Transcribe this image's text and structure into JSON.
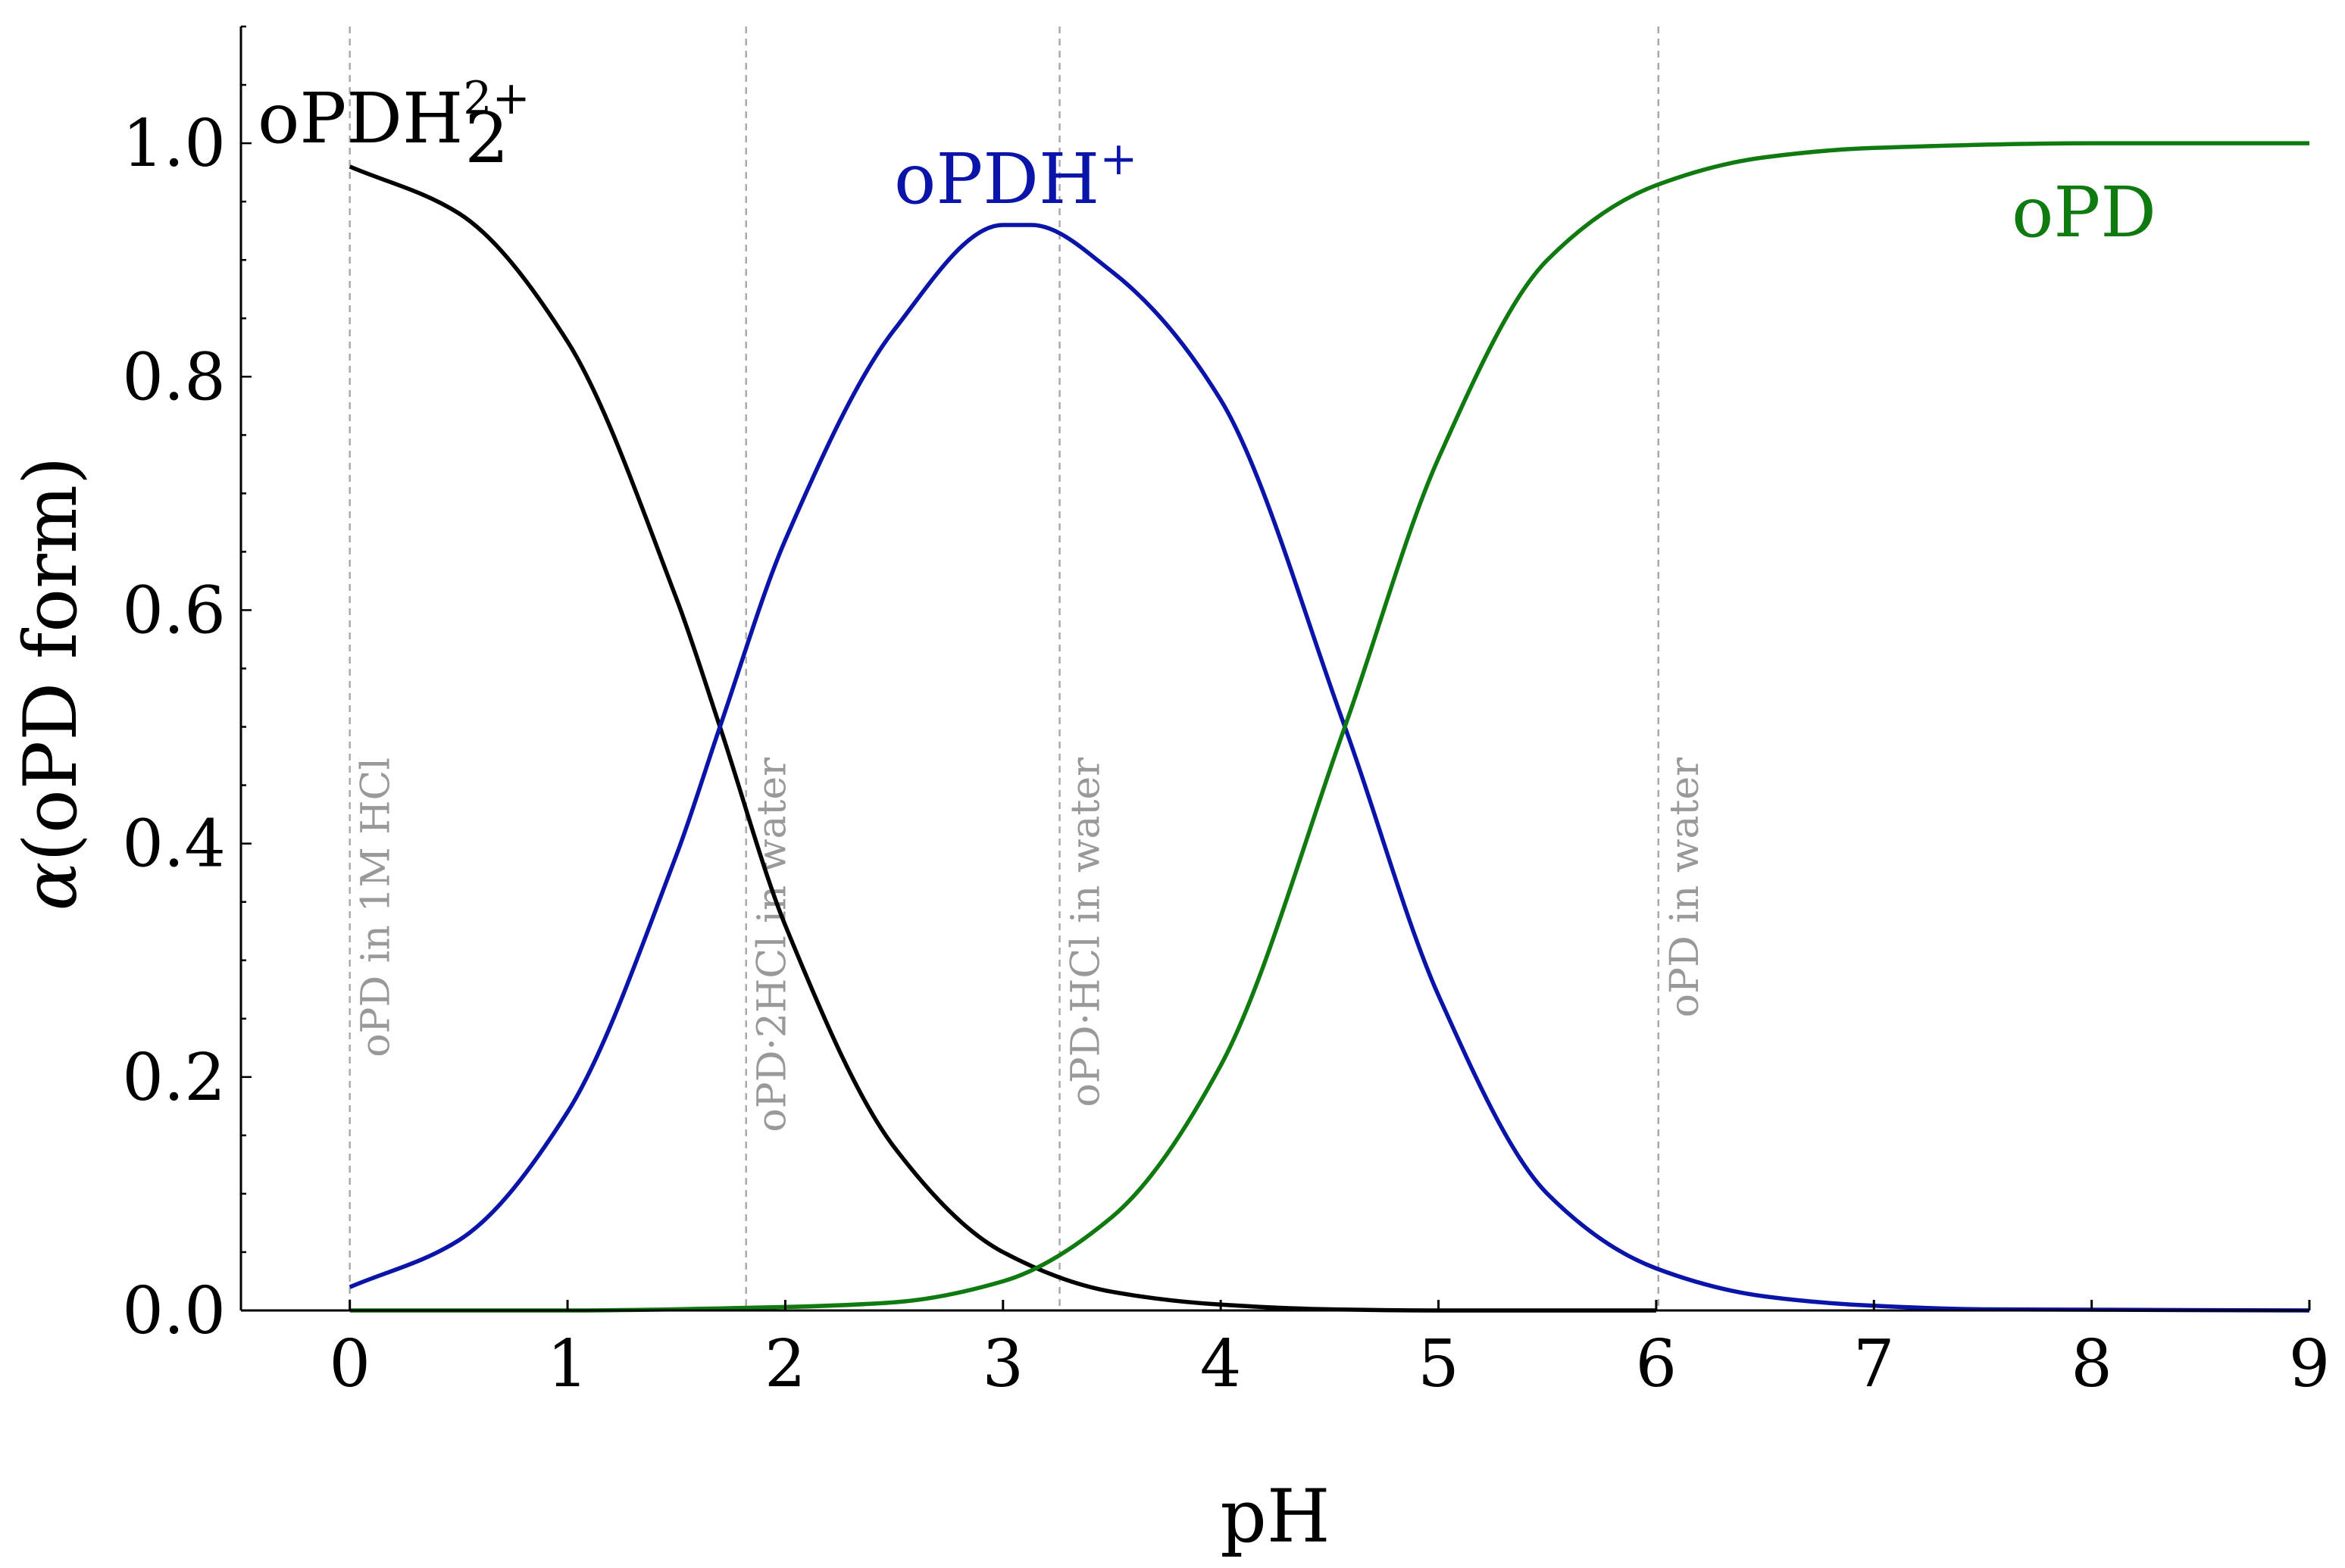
{
  "chart_data": {
    "type": "line",
    "title": "",
    "xlabel": "pH",
    "ylabel_prefix": "α",
    "ylabel": "(oPD form)",
    "xlim": [
      -0.5,
      9
    ],
    "ylim": [
      0,
      1.1
    ],
    "xticks": [
      0,
      1,
      2,
      3,
      4,
      5,
      6,
      7,
      8,
      9
    ],
    "yticks": [
      0.0,
      0.2,
      0.4,
      0.6,
      0.8,
      1.0
    ],
    "ytick_labels": [
      "0.0",
      "0.2",
      "0.4",
      "0.6",
      "0.8",
      "1.0"
    ],
    "grid": false,
    "pKa": [
      1.7,
      4.57
    ],
    "series": [
      {
        "name": "oPDH2 2+",
        "label_base": "oPDH",
        "label_sub": "2",
        "label_sup": "2+",
        "color": "#000000",
        "x": [
          0,
          0.5,
          1.0,
          1.5,
          1.7,
          2.0,
          2.5,
          3.0,
          3.5,
          4.0,
          4.5,
          5.0,
          6.0
        ],
        "values": [
          0.98,
          0.94,
          0.83,
          0.61,
          0.5,
          0.33,
          0.14,
          0.05,
          0.016,
          0.005,
          0.001,
          0.0,
          0.0
        ]
      },
      {
        "name": "oPDH +",
        "label_base": "oPDH",
        "label_sup": "+",
        "color": "#0a14a8",
        "x": [
          0,
          0.5,
          1.0,
          1.5,
          1.7,
          2.0,
          2.5,
          3.0,
          3.13,
          3.5,
          4.0,
          4.57,
          5.0,
          5.5,
          6.0,
          6.5,
          7.0,
          7.5,
          9.0
        ],
        "values": [
          0.02,
          0.06,
          0.17,
          0.39,
          0.5,
          0.66,
          0.84,
          0.93,
          0.93,
          0.89,
          0.78,
          0.5,
          0.27,
          0.1,
          0.036,
          0.012,
          0.004,
          0.001,
          0.0
        ]
      },
      {
        "name": "oPD",
        "label_base": "oPD",
        "color": "#0f7a0f",
        "x": [
          0,
          1.0,
          2.0,
          2.5,
          3.0,
          3.5,
          4.0,
          4.57,
          5.0,
          5.5,
          6.0,
          6.5,
          7.0,
          8.0,
          9.0
        ],
        "values": [
          0.0,
          0.0,
          0.003,
          0.007,
          0.025,
          0.08,
          0.21,
          0.5,
          0.73,
          0.9,
          0.964,
          0.988,
          0.996,
          1.0,
          1.0
        ]
      }
    ],
    "reference_lines": [
      {
        "x": 0.0,
        "label": "oPD in 1M HCl"
      },
      {
        "x": 1.82,
        "label": "oPD·2HCl in water"
      },
      {
        "x": 3.26,
        "label": "oPD·HCl in water"
      },
      {
        "x": 6.01,
        "label": "oPD in water"
      }
    ]
  }
}
